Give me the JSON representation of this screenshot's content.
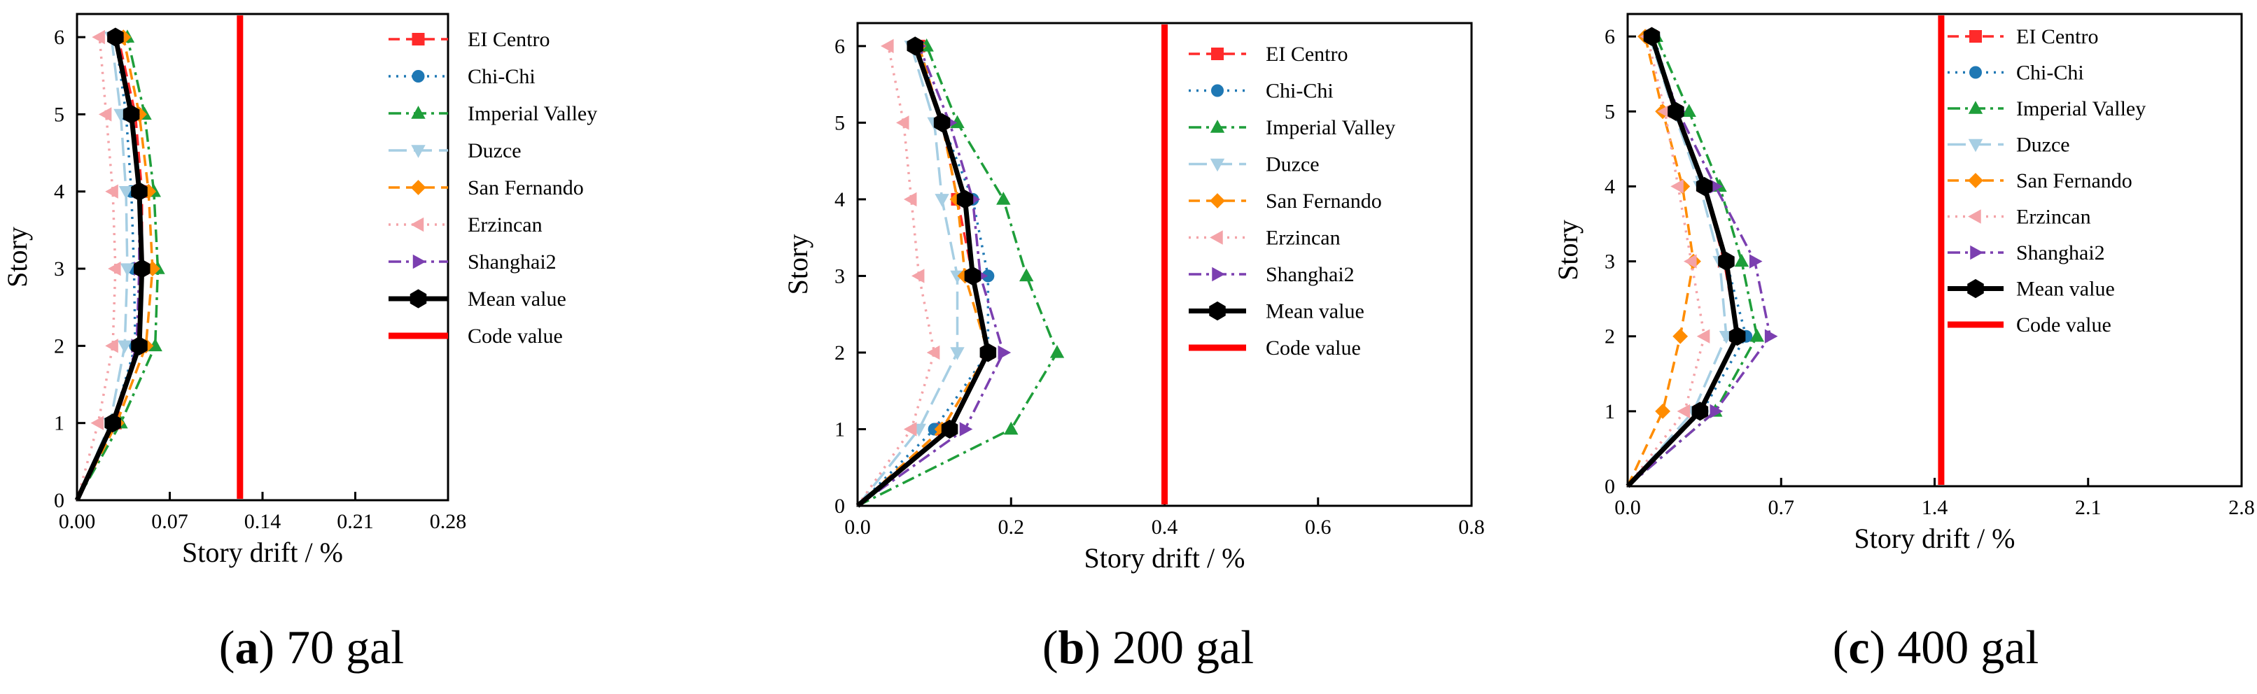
{
  "legend_entries": [
    "EI Centro",
    "Chi-Chi",
    "Imperial Valley",
    "Duzce",
    "San Fernando",
    "Erzincan",
    "Shanghai2",
    "Mean value",
    "Code value"
  ],
  "series_styles": [
    {
      "color": "#ff2a2a",
      "marker": "square",
      "dash": "dash"
    },
    {
      "color": "#1f78b4",
      "marker": "circle",
      "dash": "dot"
    },
    {
      "color": "#1e9e3a",
      "marker": "triangle-up",
      "dash": "dashdot"
    },
    {
      "color": "#a6cee3",
      "marker": "triangle-down",
      "dash": "longdash"
    },
    {
      "color": "#ff8c00",
      "marker": "diamond",
      "dash": "dash"
    },
    {
      "color": "#f4a3a8",
      "marker": "triangle-left",
      "dash": "dot"
    },
    {
      "color": "#7b3fb0",
      "marker": "triangle-right",
      "dash": "dashdot"
    },
    {
      "color": "#000000",
      "marker": "hexagon",
      "dash": "solid"
    },
    {
      "color": "#ff0000",
      "marker": "none",
      "dash": "solid"
    }
  ],
  "chart_data": [
    {
      "type": "line",
      "caption_letter": "a",
      "caption_text": " 70 gal",
      "xlabel": "Story drift / %",
      "ylabel": "Story",
      "xlim": [
        0,
        0.28
      ],
      "ylim": [
        0,
        6.3
      ],
      "xticks": [
        "0.00",
        "0.07",
        "0.14",
        "0.21",
        "0.28"
      ],
      "xtick_values": [
        0,
        0.07,
        0.14,
        0.21,
        0.28
      ],
      "yticks": [
        "0",
        "1",
        "2",
        "3",
        "4",
        "5",
        "6"
      ],
      "yticks_values": [
        0,
        1,
        2,
        3,
        4,
        5,
        6
      ],
      "stories": [
        0,
        1,
        2,
        3,
        4,
        5,
        6
      ],
      "code_value": 0.123,
      "series": [
        {
          "name": "EI Centro",
          "values": [
            0,
            0.029,
            0.046,
            0.049,
            0.049,
            0.044,
            0.031
          ]
        },
        {
          "name": "Chi-Chi",
          "values": [
            0,
            0.027,
            0.044,
            0.043,
            0.041,
            0.037,
            0.029
          ]
        },
        {
          "name": "Imperial Valley",
          "values": [
            0,
            0.033,
            0.059,
            0.061,
            0.058,
            0.051,
            0.038
          ]
        },
        {
          "name": "Duzce",
          "values": [
            0,
            0.025,
            0.036,
            0.038,
            0.037,
            0.033,
            0.026
          ]
        },
        {
          "name": "San Fernando",
          "values": [
            0,
            0.03,
            0.052,
            0.057,
            0.054,
            0.047,
            0.035
          ]
        },
        {
          "name": "Erzincan",
          "values": [
            0,
            0.016,
            0.027,
            0.029,
            0.027,
            0.022,
            0.017
          ]
        },
        {
          "name": "Shanghai2",
          "values": [
            0,
            0.028,
            0.045,
            0.047,
            0.047,
            0.042,
            0.03
          ]
        },
        {
          "name": "Mean value",
          "values": [
            0,
            0.027,
            0.047,
            0.049,
            0.047,
            0.041,
            0.029
          ]
        }
      ]
    },
    {
      "type": "line",
      "caption_letter": "b",
      "caption_text": " 200 gal",
      "xlabel": "Story drift / %",
      "ylabel": "Story",
      "xlim": [
        0,
        0.8
      ],
      "ylim": [
        0,
        6.3
      ],
      "xticks": [
        "0.0",
        "0.2",
        "0.4",
        "0.6",
        "0.8"
      ],
      "xtick_values": [
        0,
        0.2,
        0.4,
        0.6,
        0.8
      ],
      "yticks": [
        "0",
        "1",
        "2",
        "3",
        "4",
        "5",
        "6"
      ],
      "yticks_values": [
        0,
        1,
        2,
        3,
        4,
        5,
        6
      ],
      "stories": [
        0,
        1,
        2,
        3,
        4,
        5,
        6
      ],
      "code_value": 0.4,
      "series": [
        {
          "name": "EI Centro",
          "values": [
            0,
            0.11,
            0.17,
            0.15,
            0.13,
            0.11,
            0.08
          ]
        },
        {
          "name": "Chi-Chi",
          "values": [
            0,
            0.1,
            0.17,
            0.17,
            0.15,
            0.11,
            0.08
          ]
        },
        {
          "name": "Imperial Valley",
          "values": [
            0,
            0.2,
            0.26,
            0.22,
            0.19,
            0.13,
            0.09
          ]
        },
        {
          "name": "Duzce",
          "values": [
            0,
            0.08,
            0.13,
            0.13,
            0.11,
            0.1,
            0.07
          ]
        },
        {
          "name": "San Fernando",
          "values": [
            0,
            0.11,
            0.17,
            0.14,
            0.13,
            0.11,
            0.08
          ]
        },
        {
          "name": "Erzincan",
          "values": [
            0,
            0.07,
            0.1,
            0.08,
            0.07,
            0.06,
            0.04
          ]
        },
        {
          "name": "Shanghai2",
          "values": [
            0,
            0.14,
            0.19,
            0.16,
            0.15,
            0.12,
            0.08
          ]
        },
        {
          "name": "Mean value",
          "values": [
            0,
            0.12,
            0.17,
            0.15,
            0.14,
            0.11,
            0.075
          ]
        }
      ]
    },
    {
      "type": "line",
      "caption_letter": "c",
      "caption_text": " 400 gal",
      "xlabel": "Story drift / %",
      "ylabel": "Story",
      "xlim": [
        0,
        2.8
      ],
      "ylim": [
        0,
        6.3
      ],
      "xticks": [
        "0.0",
        "0.7",
        "1.4",
        "2.1",
        "2.8"
      ],
      "xtick_values": [
        0,
        0.7,
        1.4,
        2.1,
        2.8
      ],
      "yticks": [
        "0",
        "1",
        "2",
        "3",
        "4",
        "5",
        "6"
      ],
      "yticks_values": [
        0,
        1,
        2,
        3,
        4,
        5,
        6
      ],
      "stories": [
        0,
        1,
        2,
        3,
        4,
        5,
        6
      ],
      "code_value": 1.43,
      "series": [
        {
          "name": "EI Centro",
          "values": [
            0,
            0.33,
            0.5,
            0.44,
            0.35,
            0.22,
            0.11
          ]
        },
        {
          "name": "Chi-Chi",
          "values": [
            0,
            0.34,
            0.54,
            0.45,
            0.35,
            0.22,
            0.12
          ]
        },
        {
          "name": "Imperial Valley",
          "values": [
            0,
            0.4,
            0.59,
            0.52,
            0.42,
            0.28,
            0.13
          ]
        },
        {
          "name": "Duzce",
          "values": [
            0,
            0.3,
            0.45,
            0.42,
            0.33,
            0.21,
            0.1
          ]
        },
        {
          "name": "San Fernando",
          "values": [
            0,
            0.16,
            0.24,
            0.3,
            0.25,
            0.16,
            0.08
          ]
        },
        {
          "name": "Erzincan",
          "values": [
            0,
            0.26,
            0.35,
            0.29,
            0.23,
            0.17,
            0.09
          ]
        },
        {
          "name": "Shanghai2",
          "values": [
            0,
            0.4,
            0.65,
            0.58,
            0.4,
            0.23,
            0.11
          ]
        },
        {
          "name": "Mean value",
          "values": [
            0,
            0.33,
            0.5,
            0.45,
            0.35,
            0.22,
            0.11
          ]
        }
      ]
    }
  ]
}
